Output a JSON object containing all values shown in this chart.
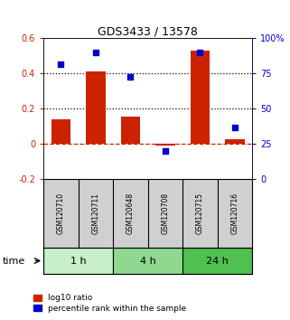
{
  "title": "GDS3433 / 13578",
  "samples": [
    "GSM120710",
    "GSM120711",
    "GSM120648",
    "GSM120708",
    "GSM120715",
    "GSM120716"
  ],
  "log10_ratio": [
    0.14,
    0.41,
    0.155,
    -0.01,
    0.53,
    0.025
  ],
  "percentile_rank": [
    82,
    90,
    73,
    20,
    90,
    37
  ],
  "time_groups": [
    {
      "label": "1 h",
      "start": 0,
      "end": 2,
      "color": "#c8f0c8"
    },
    {
      "label": "4 h",
      "start": 2,
      "end": 4,
      "color": "#90d890"
    },
    {
      "label": "24 h",
      "start": 4,
      "end": 6,
      "color": "#50c050"
    }
  ],
  "bar_color": "#cc2200",
  "dot_color": "#0000cc",
  "ylim_left": [
    -0.2,
    0.6
  ],
  "ylim_right": [
    0,
    100
  ],
  "yticks_left": [
    -0.2,
    0.0,
    0.2,
    0.4,
    0.6
  ],
  "yticks_right": [
    0,
    25,
    50,
    75,
    100
  ],
  "ytick_labels_left": [
    "-0.2",
    "0",
    "0.2",
    "0.4",
    "0.6"
  ],
  "ytick_labels_right": [
    "0",
    "25",
    "50",
    "75",
    "100%"
  ],
  "hlines_dotted": [
    0.2,
    0.4
  ],
  "hline_dashed": 0.0,
  "bg_color": "#d0d0d0",
  "legend_bar_label": "log10 ratio",
  "legend_dot_label": "percentile rank within the sample",
  "time_label": "time"
}
